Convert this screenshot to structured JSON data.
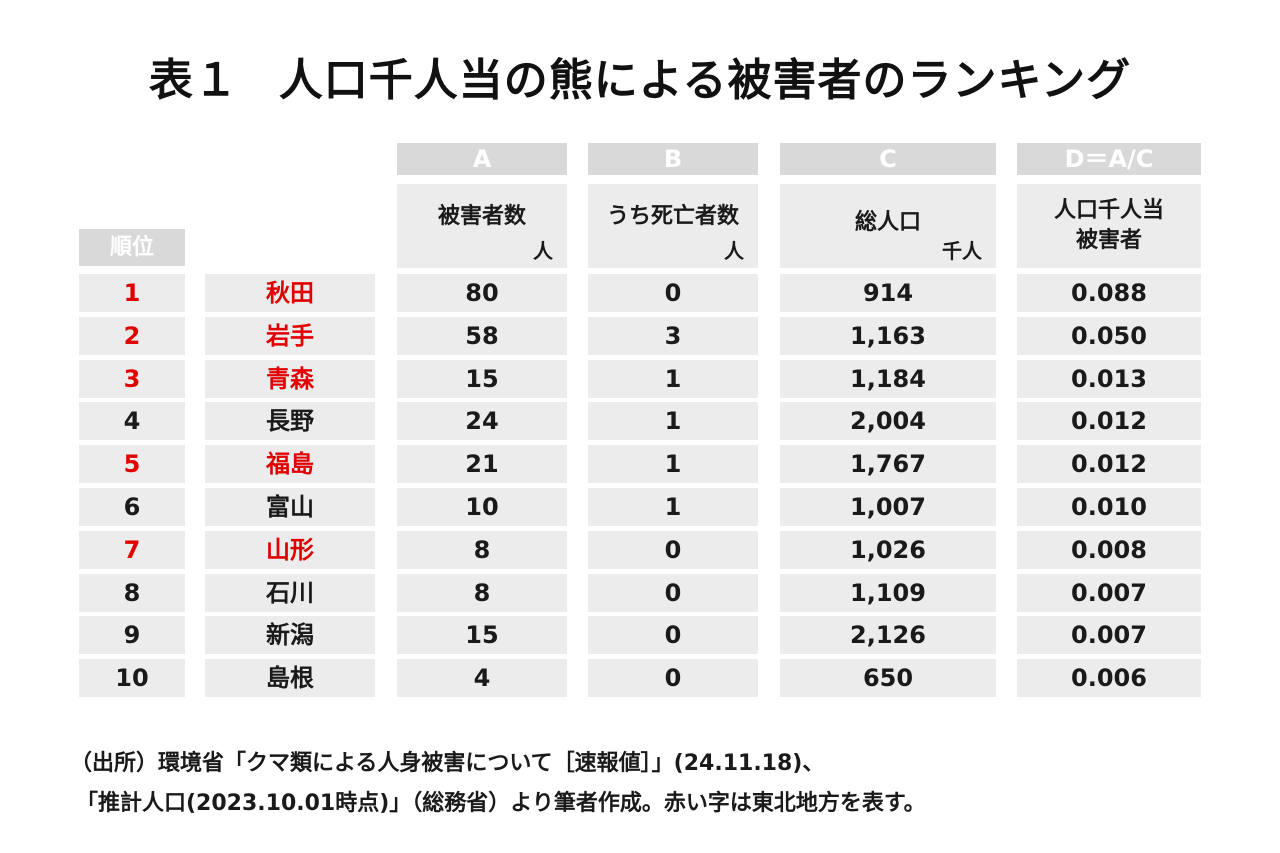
{
  "title": {
    "prefix": "表１",
    "text": "人口千人当の熊による被害者のランキング"
  },
  "headers": {
    "rank": "順位",
    "letters": [
      "A",
      "B",
      "C",
      "D＝A/C"
    ],
    "a_label": "被害者数",
    "a_unit": "人",
    "b_label": "うち死亡者数",
    "b_unit": "人",
    "c_label": "総人口",
    "c_unit": "千人",
    "d_label_line1": "人口千人当",
    "d_label_line2": "被害者"
  },
  "rows": [
    {
      "rank": "1",
      "pref": "秋田",
      "a": "80",
      "b": "0",
      "c": "914",
      "d": "0.088",
      "tohoku": true
    },
    {
      "rank": "2",
      "pref": "岩手",
      "a": "58",
      "b": "3",
      "c": "1,163",
      "d": "0.050",
      "tohoku": true
    },
    {
      "rank": "3",
      "pref": "青森",
      "a": "15",
      "b": "1",
      "c": "1,184",
      "d": "0.013",
      "tohoku": true
    },
    {
      "rank": "4",
      "pref": "長野",
      "a": "24",
      "b": "1",
      "c": "2,004",
      "d": "0.012",
      "tohoku": false
    },
    {
      "rank": "5",
      "pref": "福島",
      "a": "21",
      "b": "1",
      "c": "1,767",
      "d": "0.012",
      "tohoku": true
    },
    {
      "rank": "6",
      "pref": "富山",
      "a": "10",
      "b": "1",
      "c": "1,007",
      "d": "0.010",
      "tohoku": false
    },
    {
      "rank": "7",
      "pref": "山形",
      "a": "8",
      "b": "0",
      "c": "1,026",
      "d": "0.008",
      "tohoku": true
    },
    {
      "rank": "8",
      "pref": "石川",
      "a": "8",
      "b": "0",
      "c": "1,109",
      "d": "0.007",
      "tohoku": false
    },
    {
      "rank": "9",
      "pref": "新潟",
      "a": "15",
      "b": "0",
      "c": "2,126",
      "d": "0.007",
      "tohoku": false
    },
    {
      "rank": "10",
      "pref": "島根",
      "a": "4",
      "b": "0",
      "c": "650",
      "d": "0.006",
      "tohoku": false
    }
  ],
  "colors": {
    "highlight": "#e00000",
    "header_fill": "#d9d9d9",
    "cell_fill": "#ececec"
  },
  "source": {
    "line1": "（出所）環境省「クマ類による人身被害について［速報値］」(24.11.18)、",
    "line2": "「推計人口(2023.10.01時点)」（総務省）より筆者作成。赤い字は東北地方を表す。"
  }
}
